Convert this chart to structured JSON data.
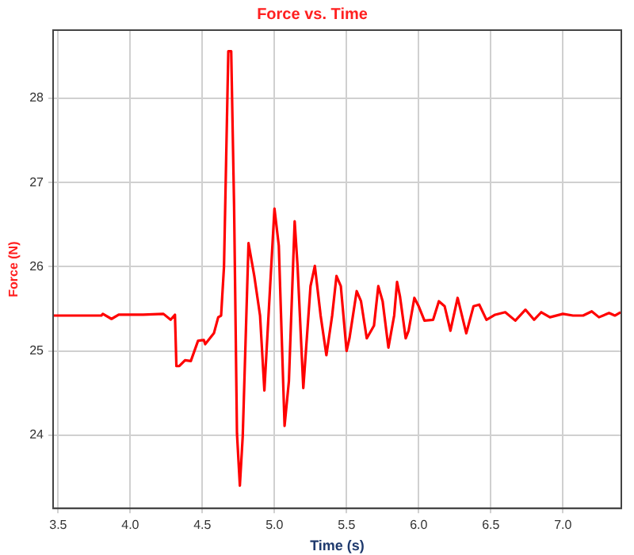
{
  "chart_data": {
    "type": "line",
    "title": "Force vs. Time",
    "xlabel": "Time (s)",
    "ylabel": "Force (N)",
    "x": [
      3.47,
      3.8,
      3.81,
      3.87,
      3.92,
      4.01,
      4.09,
      4.23,
      4.28,
      4.31,
      4.32,
      4.34,
      4.38,
      4.42,
      4.47,
      4.51,
      4.52,
      4.58,
      4.61,
      4.63,
      4.65,
      4.68,
      4.7,
      4.72,
      4.74,
      4.76,
      4.78,
      4.82,
      4.86,
      4.9,
      4.93,
      4.97,
      5.0,
      5.03,
      5.07,
      5.1,
      5.14,
      5.16,
      5.2,
      5.25,
      5.28,
      5.32,
      5.36,
      5.4,
      5.43,
      5.46,
      5.5,
      5.52,
      5.57,
      5.6,
      5.64,
      5.69,
      5.72,
      5.75,
      5.79,
      5.83,
      5.85,
      5.87,
      5.91,
      5.93,
      5.97,
      6.0,
      6.04,
      6.1,
      6.14,
      6.18,
      6.22,
      6.27,
      6.33,
      6.38,
      6.42,
      6.47,
      6.53,
      6.6,
      6.67,
      6.74,
      6.8,
      6.85,
      6.91,
      7.0,
      7.07,
      7.14,
      7.2,
      7.25,
      7.32,
      7.36,
      7.4
    ],
    "series": [
      {
        "color": "#ff0000",
        "values": [
          25.42,
          25.42,
          25.44,
          25.38,
          25.43,
          25.43,
          25.43,
          25.44,
          25.37,
          25.43,
          24.82,
          24.82,
          24.89,
          24.88,
          25.12,
          25.13,
          25.08,
          25.21,
          25.4,
          25.42,
          26.0,
          28.56,
          28.56,
          26.72,
          24.02,
          23.4,
          23.99,
          26.28,
          25.89,
          25.42,
          24.53,
          25.77,
          26.69,
          26.25,
          24.11,
          24.64,
          26.54,
          26.01,
          24.56,
          25.77,
          26.01,
          25.42,
          24.95,
          25.42,
          25.89,
          25.77,
          25.0,
          25.15,
          25.71,
          25.59,
          25.15,
          25.3,
          25.77,
          25.59,
          25.04,
          25.42,
          25.82,
          25.65,
          25.15,
          25.24,
          25.63,
          25.53,
          25.36,
          25.37,
          25.59,
          25.53,
          25.24,
          25.63,
          25.21,
          25.53,
          25.55,
          25.37,
          25.43,
          25.46,
          25.36,
          25.49,
          25.37,
          25.46,
          25.4,
          25.44,
          25.42,
          25.42,
          25.47,
          25.4,
          25.45,
          25.42,
          25.46
        ]
      }
    ],
    "xlim": [
      3.465,
      7.405
    ],
    "ylim": [
      23.13,
      28.81
    ],
    "xticks": [
      3.5,
      {
        "value": 4,
        "label": "4.0"
      },
      4.5,
      {
        "value": 5,
        "label": "5.0"
      },
      5.5,
      {
        "value": 6,
        "label": "6.0"
      },
      6.5,
      {
        "value": 7,
        "label": "7.0"
      }
    ],
    "yticks": [
      24,
      25,
      26,
      27,
      28
    ],
    "grid": true,
    "legend": false,
    "marker": "none",
    "line_style": "solid"
  }
}
